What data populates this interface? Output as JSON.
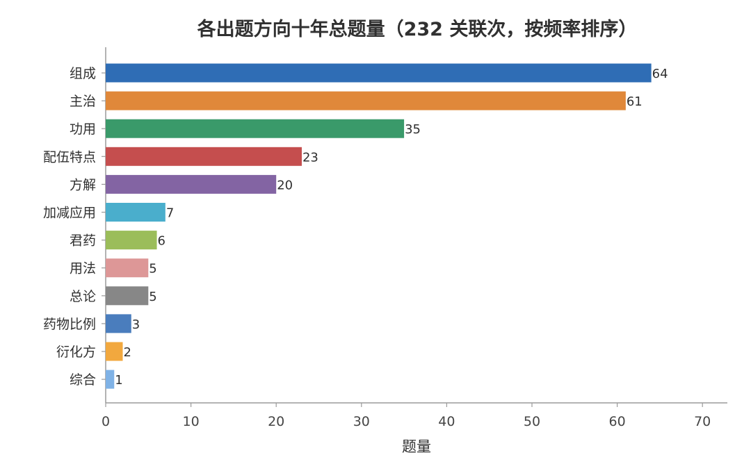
{
  "chart_data": {
    "type": "bar",
    "orientation": "horizontal",
    "title": "各出题方向十年总题量（232 关联次，按频率排序）",
    "xlabel": "题量",
    "ylabel": "",
    "xlim": [
      0,
      73
    ],
    "xticks": [
      0,
      10,
      20,
      30,
      40,
      50,
      60,
      70
    ],
    "grid": false,
    "categories": [
      "组成",
      "主治",
      "功用",
      "配伍特点",
      "方解",
      "加减应用",
      "君药",
      "用法",
      "总论",
      "药物比例",
      "衍化方",
      "综合"
    ],
    "values": [
      64,
      61,
      35,
      23,
      20,
      7,
      6,
      5,
      5,
      3,
      2,
      1
    ],
    "colors": [
      "#2f6db5",
      "#e0883a",
      "#3a9a6a",
      "#c54e4e",
      "#8364a3",
      "#4aaecc",
      "#9bbd5a",
      "#dd9797",
      "#878787",
      "#4a7dbd",
      "#f2a83e",
      "#7fb2e6"
    ]
  }
}
